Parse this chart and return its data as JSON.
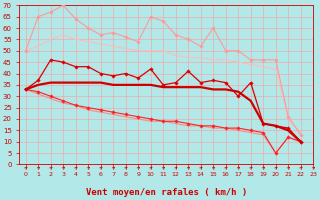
{
  "background_color": "#b2e8e8",
  "grid_color": "#ff9999",
  "xlabel": "Vent moyen/en rafales ( km/h )",
  "xlim": [
    -0.5,
    23
  ],
  "ylim": [
    0,
    70
  ],
  "yticks": [
    0,
    5,
    10,
    15,
    20,
    25,
    30,
    35,
    40,
    45,
    50,
    55,
    60,
    65,
    70
  ],
  "xticks": [
    0,
    1,
    2,
    3,
    4,
    5,
    6,
    7,
    8,
    9,
    10,
    11,
    12,
    13,
    14,
    15,
    16,
    17,
    18,
    19,
    20,
    21,
    22,
    23
  ],
  "series": [
    {
      "x": [
        0,
        1,
        2,
        3,
        4,
        5,
        6,
        7,
        8,
        9,
        10,
        11,
        12,
        13,
        14,
        15,
        16,
        17,
        18,
        19,
        20,
        21,
        22
      ],
      "y": [
        50,
        65,
        67,
        70,
        64,
        60,
        57,
        58,
        56,
        54,
        65,
        63,
        57,
        55,
        52,
        60,
        50,
        50,
        46,
        46,
        46,
        21,
        13
      ],
      "color": "#ff9999",
      "linewidth": 0.8,
      "marker": "D",
      "markersize": 1.8,
      "linestyle": "-",
      "zorder": 3
    },
    {
      "x": [
        0,
        1,
        2,
        3,
        4,
        5,
        6,
        7,
        8,
        9,
        10,
        11,
        12,
        13,
        14,
        15,
        16,
        17,
        18,
        19,
        20,
        21,
        22
      ],
      "y": [
        50,
        52,
        55,
        57,
        55,
        54,
        53,
        52,
        51,
        50,
        50,
        50,
        48,
        47,
        47,
        46,
        46,
        45,
        44,
        43,
        42,
        20,
        14
      ],
      "color": "#ffbbbb",
      "linewidth": 0.8,
      "marker": null,
      "markersize": 0,
      "linestyle": "-",
      "zorder": 2
    },
    {
      "x": [
        0,
        1,
        2,
        3,
        4,
        5,
        6,
        7,
        8,
        9,
        10,
        11,
        12,
        13,
        14,
        15,
        16,
        17,
        18,
        19,
        20,
        21,
        22
      ],
      "y": [
        33,
        37,
        46,
        45,
        43,
        43,
        40,
        39,
        40,
        38,
        42,
        35,
        36,
        41,
        36,
        37,
        36,
        30,
        36,
        18,
        17,
        16,
        10
      ],
      "color": "#dd0000",
      "linewidth": 0.9,
      "marker": "D",
      "markersize": 1.8,
      "linestyle": "-",
      "zorder": 4
    },
    {
      "x": [
        0,
        1,
        2,
        3,
        4,
        5,
        6,
        7,
        8,
        9,
        10,
        11,
        12,
        13,
        14,
        15,
        16,
        17,
        18,
        19,
        20,
        21,
        22
      ],
      "y": [
        33,
        35,
        36,
        36,
        36,
        36,
        36,
        35,
        35,
        35,
        35,
        34,
        34,
        34,
        34,
        33,
        33,
        32,
        28,
        18,
        17,
        15,
        10
      ],
      "color": "#cc0000",
      "linewidth": 1.6,
      "marker": null,
      "markersize": 0,
      "linestyle": "-",
      "zorder": 5
    },
    {
      "x": [
        0,
        1,
        2,
        3,
        4,
        5,
        6,
        7,
        8,
        9,
        10,
        11,
        12,
        13,
        14,
        15,
        16,
        17,
        18,
        19,
        20,
        21,
        22
      ],
      "y": [
        33,
        32,
        30,
        28,
        26,
        25,
        24,
        23,
        22,
        21,
        20,
        19,
        19,
        18,
        17,
        17,
        16,
        16,
        15,
        14,
        5,
        12,
        10
      ],
      "color": "#ff2222",
      "linewidth": 0.8,
      "marker": "D",
      "markersize": 1.8,
      "linestyle": "-",
      "zorder": 3
    },
    {
      "x": [
        0,
        1,
        2,
        3,
        4,
        5,
        6,
        7,
        8,
        9,
        10,
        11,
        12,
        13,
        14,
        15,
        16,
        17,
        18,
        19,
        20,
        21,
        22
      ],
      "y": [
        33,
        31,
        29,
        27,
        26,
        24,
        23,
        22,
        21,
        20,
        19,
        19,
        18,
        17,
        17,
        16,
        16,
        15,
        14,
        13,
        5,
        12,
        10
      ],
      "color": "#ff8888",
      "linewidth": 0.8,
      "marker": null,
      "markersize": 0,
      "linestyle": "-",
      "zorder": 2
    }
  ],
  "xlabel_color": "#cc0000",
  "tick_color": "#cc0000",
  "xlabel_fontsize": 6.5,
  "tick_fontsize_x": 4.5,
  "tick_fontsize_y": 5.0
}
